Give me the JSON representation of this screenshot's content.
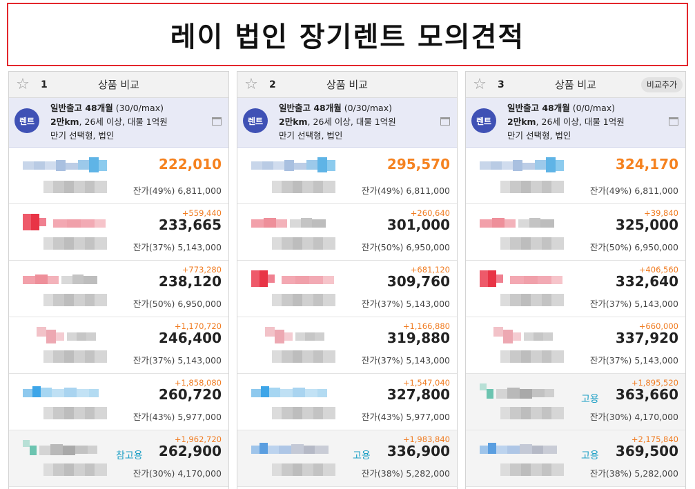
{
  "page": {
    "title": "레이 법인 장기렌트 모의견적"
  },
  "columns": [
    {
      "num": "1",
      "title": "상품 비교",
      "add_label": "",
      "badge": "렌트",
      "line1": "일반출고 48개월",
      "line1_sub": " (30/0/max)",
      "line2": "2만km",
      "line2_sub": ", 26세 이상, 대물 1억원",
      "line3": "만기 선택형, 법인",
      "rows": [
        {
          "diff": "",
          "price": "222,010",
          "residual": "잔가(49%) 6,811,000",
          "tag": "",
          "logo": "blue"
        },
        {
          "diff": "+559,440",
          "price": "233,665",
          "residual": "잔가(37%) 5,143,000",
          "tag": "",
          "logo": "redcross"
        },
        {
          "diff": "+773,280",
          "price": "238,120",
          "residual": "잔가(50%) 6,950,000",
          "tag": "",
          "logo": "pinkgray"
        },
        {
          "diff": "+1,170,720",
          "price": "246,400",
          "residual": "잔가(37%) 5,143,000",
          "tag": "",
          "logo": "pinksmall"
        },
        {
          "diff": "+1,858,080",
          "price": "260,720",
          "residual": "잔가(43%) 5,977,000",
          "tag": "",
          "logo": "bluelight"
        },
        {
          "diff": "+1,962,720",
          "price": "262,900",
          "residual": "잔가(30%) 4,170,000",
          "tag": "참고용",
          "logo": "tealgray"
        }
      ]
    },
    {
      "num": "2",
      "title": "상품 비교",
      "add_label": "",
      "badge": "렌트",
      "line1": "일반출고 48개월",
      "line1_sub": " (0/30/max)",
      "line2": "2만km",
      "line2_sub": ", 26세 이상, 대물 1억원",
      "line3": "만기 선택형, 법인",
      "rows": [
        {
          "diff": "",
          "price": "295,570",
          "residual": "잔가(49%) 6,811,000",
          "tag": "",
          "logo": "blue"
        },
        {
          "diff": "+260,640",
          "price": "301,000",
          "residual": "잔가(50%) 6,950,000",
          "tag": "",
          "logo": "pinkgray"
        },
        {
          "diff": "+681,120",
          "price": "309,760",
          "residual": "잔가(37%) 5,143,000",
          "tag": "",
          "logo": "redcross"
        },
        {
          "diff": "+1,166,880",
          "price": "319,880",
          "residual": "잔가(37%) 5,143,000",
          "tag": "",
          "logo": "pinksmall"
        },
        {
          "diff": "+1,547,040",
          "price": "327,800",
          "residual": "잔가(43%) 5,977,000",
          "tag": "",
          "logo": "bluelight"
        },
        {
          "diff": "+1,983,840",
          "price": "336,900",
          "residual": "잔가(38%) 5,282,000",
          "tag": "고용",
          "logo": "bluegray"
        }
      ]
    },
    {
      "num": "3",
      "title": "상품 비교",
      "add_label": "비교추가",
      "badge": "렌트",
      "line1": "일반출고 48개월",
      "line1_sub": " (0/0/max)",
      "line2": "2만km",
      "line2_sub": ", 26세 이상, 대물 1억원",
      "line3": "만기 선택형, 법인",
      "rows": [
        {
          "diff": "",
          "price": "324,170",
          "residual": "잔가(49%) 6,811,000",
          "tag": "",
          "logo": "blue"
        },
        {
          "diff": "+39,840",
          "price": "325,000",
          "residual": "잔가(50%) 6,950,000",
          "tag": "",
          "logo": "pinkgray"
        },
        {
          "diff": "+406,560",
          "price": "332,640",
          "residual": "잔가(37%) 5,143,000",
          "tag": "",
          "logo": "redcross"
        },
        {
          "diff": "+660,000",
          "price": "337,920",
          "residual": "잔가(37%) 5,143,000",
          "tag": "",
          "logo": "pinksmall"
        },
        {
          "diff": "+1,895,520",
          "price": "363,660",
          "residual": "잔가(30%) 4,170,000",
          "tag": "고용",
          "logo": "tealgray"
        },
        {
          "diff": "+2,175,840",
          "price": "369,500",
          "residual": "잔가(38%) 5,282,000",
          "tag": "고용",
          "logo": "bluegray"
        }
      ]
    }
  ],
  "colors": {
    "accent_orange": "#f58220",
    "diff_orange": "#f07b20",
    "badge_blue": "#3f51b5",
    "title_border": "#e3262c",
    "tag_blue": "#1a9ec4"
  },
  "icons": {
    "favorite": "star-outline-icon",
    "memo": "window-icon"
  }
}
